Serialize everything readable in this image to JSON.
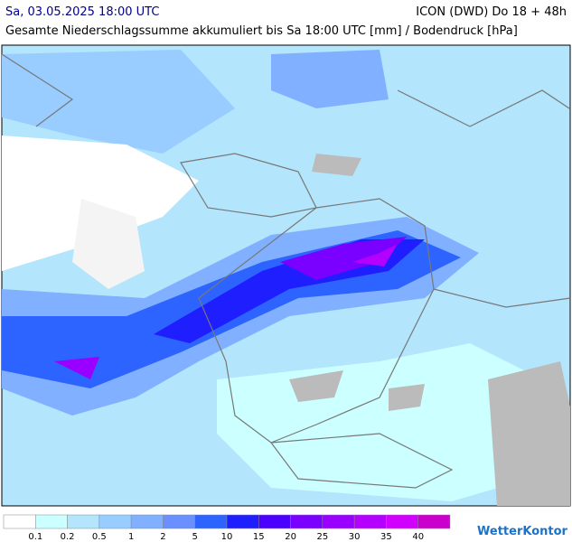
{
  "header": {
    "datetime": "Sa, 03.05.2025 18:00 UTC",
    "model": "ICON (DWD) Do 18 + 48h",
    "subtitle": "Gesamte Niederschlagssumme akkumuliert bis Sa 18:00 UTC [mm] / Bodendruck [hPa]"
  },
  "legend": {
    "colors": [
      "#ffffff",
      "#ccffff",
      "#b3e5fc",
      "#99ccff",
      "#80b0ff",
      "#6a90ff",
      "#2d64ff",
      "#1e1eff",
      "#4b00ff",
      "#7a00ff",
      "#9900ff",
      "#b400ff",
      "#d200ff",
      "#cc00cc"
    ],
    "labels": [
      "0.1",
      "0.2",
      "0.5",
      "1",
      "2",
      "5",
      "10",
      "15",
      "20",
      "25",
      "30",
      "35",
      "40"
    ]
  },
  "brand": "WetterKontor"
}
